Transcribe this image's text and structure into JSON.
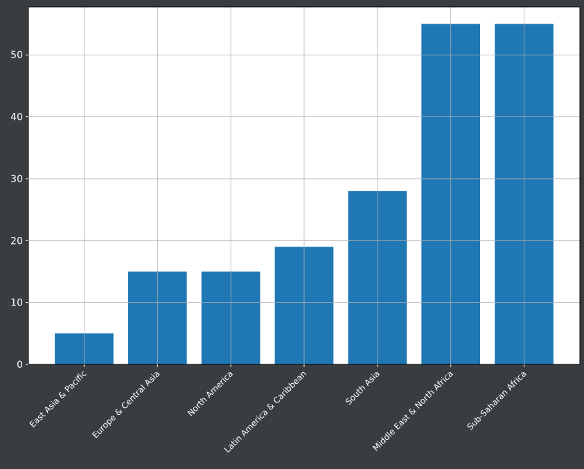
{
  "chart_data": {
    "type": "bar",
    "title": "",
    "xlabel": "",
    "ylabel": "",
    "categories": [
      "East Asia & Pacific",
      "Europe & Central Asia",
      "North America",
      "Latin America & Caribbean",
      "South Asia",
      "Middle East & North Africa",
      "Sub-Saharan Africa"
    ],
    "values": [
      5,
      15,
      15,
      19,
      28,
      55,
      55
    ],
    "ylim": [
      0,
      57.75
    ],
    "yticks": [
      0,
      10,
      20,
      30,
      40,
      50
    ],
    "grid": true,
    "legend": "none",
    "colors": {
      "bar": "#1f77b4",
      "plot_background": "#ffffff",
      "figure_background": "#3a3d40",
      "grid": "#b0b0b0",
      "tick_text": "#ffffff"
    }
  }
}
